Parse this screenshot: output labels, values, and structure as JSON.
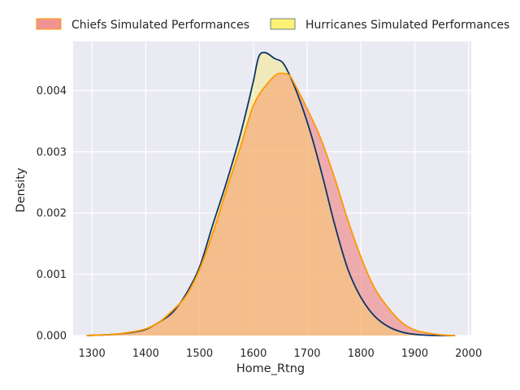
{
  "chart_data": {
    "type": "area",
    "xlabel": "Home_Rtng",
    "ylabel": "Density",
    "xlim": [
      1265,
      2005
    ],
    "ylim": [
      0,
      0.0048
    ],
    "x_ticks": [
      1300,
      1400,
      1500,
      1600,
      1700,
      1800,
      1900,
      2000
    ],
    "y_ticks": [
      0,
      0.001,
      0.002,
      0.003,
      0.004
    ],
    "y_tick_labels": [
      "0.000",
      "0.001",
      "0.002",
      "0.003",
      "0.004"
    ],
    "grid": true,
    "legend_placement": "top (outside plot, 2 columns)",
    "series": [
      {
        "name": "Chiefs Simulated Performances",
        "fill": "#f08080",
        "fill_opacity": 0.6,
        "stroke": "#ff9900",
        "points": [
          [
            1290,
            0
          ],
          [
            1340,
            2e-05
          ],
          [
            1360,
            4e-05
          ],
          [
            1400,
            0.00011
          ],
          [
            1425,
            0.00022
          ],
          [
            1450,
            0.00041
          ],
          [
            1475,
            0.00065
          ],
          [
            1500,
            0.00108
          ],
          [
            1525,
            0.00168
          ],
          [
            1550,
            0.00238
          ],
          [
            1575,
            0.00305
          ],
          [
            1600,
            0.00375
          ],
          [
            1625,
            0.0041
          ],
          [
            1650,
            0.00428
          ],
          [
            1665,
            0.00426
          ],
          [
            1680,
            0.00405
          ],
          [
            1700,
            0.0037
          ],
          [
            1725,
            0.00322
          ],
          [
            1750,
            0.0026
          ],
          [
            1775,
            0.0019
          ],
          [
            1800,
            0.00128
          ],
          [
            1825,
            0.00078
          ],
          [
            1850,
            0.00046
          ],
          [
            1875,
            0.00022
          ],
          [
            1900,
            9e-05
          ],
          [
            1925,
            4e-05
          ],
          [
            1950,
            1e-05
          ],
          [
            1975,
            0
          ]
        ]
      },
      {
        "name": "Hurricanes Simulated Performances",
        "fill": "#ffeb3b",
        "fill_opacity": 0.3,
        "stroke": "#0b3566",
        "points": [
          [
            1290,
            0
          ],
          [
            1340,
            2e-05
          ],
          [
            1380,
            6e-05
          ],
          [
            1400,
            0.0001
          ],
          [
            1425,
            0.00022
          ],
          [
            1450,
            0.00038
          ],
          [
            1475,
            0.00068
          ],
          [
            1500,
            0.00112
          ],
          [
            1525,
            0.00182
          ],
          [
            1550,
            0.0025
          ],
          [
            1575,
            0.00325
          ],
          [
            1600,
            0.00415
          ],
          [
            1610,
            0.00455
          ],
          [
            1620,
            0.00462
          ],
          [
            1640,
            0.00452
          ],
          [
            1655,
            0.00445
          ],
          [
            1670,
            0.0042
          ],
          [
            1690,
            0.00375
          ],
          [
            1710,
            0.0032
          ],
          [
            1730,
            0.00255
          ],
          [
            1750,
            0.00185
          ],
          [
            1775,
            0.0011
          ],
          [
            1800,
            0.00062
          ],
          [
            1825,
            0.00032
          ],
          [
            1850,
            0.00015
          ],
          [
            1875,
            6e-05
          ],
          [
            1900,
            2e-05
          ],
          [
            1950,
            0
          ],
          [
            1975,
            0
          ]
        ]
      }
    ]
  }
}
